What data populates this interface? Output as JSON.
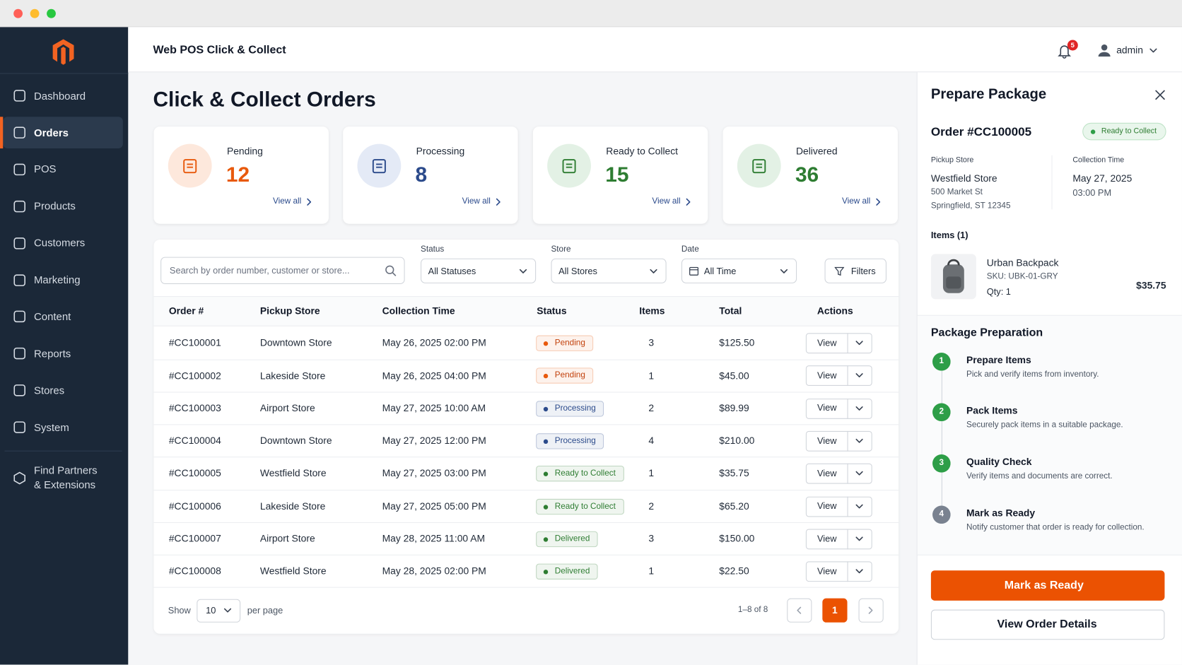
{
  "sidebar": {
    "nav": [
      {
        "label": "Dashboard"
      },
      {
        "label": "Orders",
        "active": true
      },
      {
        "label": "POS"
      },
      {
        "label": "Products"
      },
      {
        "label": "Customers"
      },
      {
        "label": "Marketing"
      },
      {
        "label": "Content"
      },
      {
        "label": "Reports"
      },
      {
        "label": "Stores"
      },
      {
        "label": "System"
      }
    ],
    "extra": [
      "Find Partners",
      "& Extensions"
    ]
  },
  "header": {
    "title": "Web POS Click & Collect",
    "notification_count": 5,
    "user": "admin"
  },
  "page": {
    "title": "Click & Collect Orders"
  },
  "stats": [
    {
      "label": "Pending",
      "value": 12,
      "link": "View all",
      "color": "#e8590c",
      "tint": "#fde8dc"
    },
    {
      "label": "Processing",
      "value": 8,
      "link": "View all",
      "color": "#2b4a8b",
      "tint": "#e4eaf6"
    },
    {
      "label": "Ready to Collect",
      "value": 15,
      "link": "View all",
      "color": "#2e7d32",
      "tint": "#e3f1e5"
    },
    {
      "label": "Delivered",
      "value": 36,
      "link": "View all",
      "color": "#2e7d32",
      "tint": "#e3f1e5"
    }
  ],
  "filters": {
    "search_placeholder": "Search by order number, customer or store...",
    "status": {
      "label": "Status",
      "value": "All Statuses"
    },
    "store": {
      "label": "Store",
      "value": "All Stores"
    },
    "date": {
      "label": "Date",
      "value": "All Time"
    },
    "button": "Filters"
  },
  "table": {
    "columns": [
      "Order #",
      "Pickup Store",
      "Collection Time",
      "Status",
      "Items",
      "Total",
      "Actions"
    ],
    "action_label": "View",
    "rows": [
      {
        "order": "#CC100001",
        "store": "Downtown Store",
        "time": "May 26, 2025 02:00 PM",
        "status": "Pending",
        "status_color": "#e8590c",
        "items": 3,
        "total": "$125.50"
      },
      {
        "order": "#CC100002",
        "store": "Lakeside Store",
        "time": "May 26, 2025 04:00 PM",
        "status": "Pending",
        "status_color": "#e8590c",
        "items": 1,
        "total": "$45.00"
      },
      {
        "order": "#CC100003",
        "store": "Airport Store",
        "time": "May 27, 2025 10:00 AM",
        "status": "Processing",
        "status_color": "#2b4a8b",
        "items": 2,
        "total": "$89.99"
      },
      {
        "order": "#CC100004",
        "store": "Downtown Store",
        "time": "May 27, 2025 12:00 PM",
        "status": "Processing",
        "status_color": "#2b4a8b",
        "items": 4,
        "total": "$210.00"
      },
      {
        "order": "#CC100005",
        "store": "Westfield Store",
        "time": "May 27, 2025 03:00 PM",
        "status": "Ready to Collect",
        "status_color": "#2e7d32",
        "items": 1,
        "total": "$35.75"
      },
      {
        "order": "#CC100006",
        "store": "Lakeside Store",
        "time": "May 27, 2025 05:00 PM",
        "status": "Ready to Collect",
        "status_color": "#2e7d32",
        "items": 2,
        "total": "$65.20"
      },
      {
        "order": "#CC100007",
        "store": "Airport Store",
        "time": "May 28, 2025 11:00 AM",
        "status": "Delivered",
        "status_color": "#2e7d32",
        "items": 3,
        "total": "$150.00"
      },
      {
        "order": "#CC100008",
        "store": "Westfield Store",
        "time": "May 28, 2025 02:00 PM",
        "status": "Delivered",
        "status_color": "#2e7d32",
        "items": 1,
        "total": "$22.50"
      }
    ]
  },
  "pagination": {
    "show_label": "Show",
    "per_page": 10,
    "per_page_suffix": "per page",
    "range": "1–8 of 8",
    "current_page": 1
  },
  "panel": {
    "title": "Prepare Package",
    "order": "Order #CC100005",
    "status": "Ready to Collect",
    "pickup_label": "Pickup Store",
    "store_name": "Westfield Store",
    "address": [
      "500 Market St",
      "Springfield, ST 12345"
    ],
    "collection_label": "Collection Time",
    "collection": [
      "May 27, 2025",
      "03:00 PM"
    ],
    "items_heading": "Items (1)",
    "item": {
      "name": "Urban Backpack",
      "sku": "SKU: UBK-01-GRY",
      "qty": "Qty: 1",
      "price": "$35.75"
    },
    "prep_heading": "Package Preparation",
    "steps": [
      {
        "number": 1,
        "title": "Prepare Items",
        "desc": "Pick and verify items from inventory.",
        "color": "#2e9e48"
      },
      {
        "number": 2,
        "title": "Pack Items",
        "desc": "Securely pack items in a suitable package.",
        "color": "#2e9e48"
      },
      {
        "number": 3,
        "title": "Quality Check",
        "desc": "Verify items and documents are correct.",
        "color": "#2e9e48"
      },
      {
        "number": 4,
        "title": "Mark as Ready",
        "desc": "Notify customer that order is ready for collection.",
        "color": "#7a8290"
      }
    ],
    "primary_button": "Mark as Ready",
    "secondary_button": "View Order Details"
  }
}
